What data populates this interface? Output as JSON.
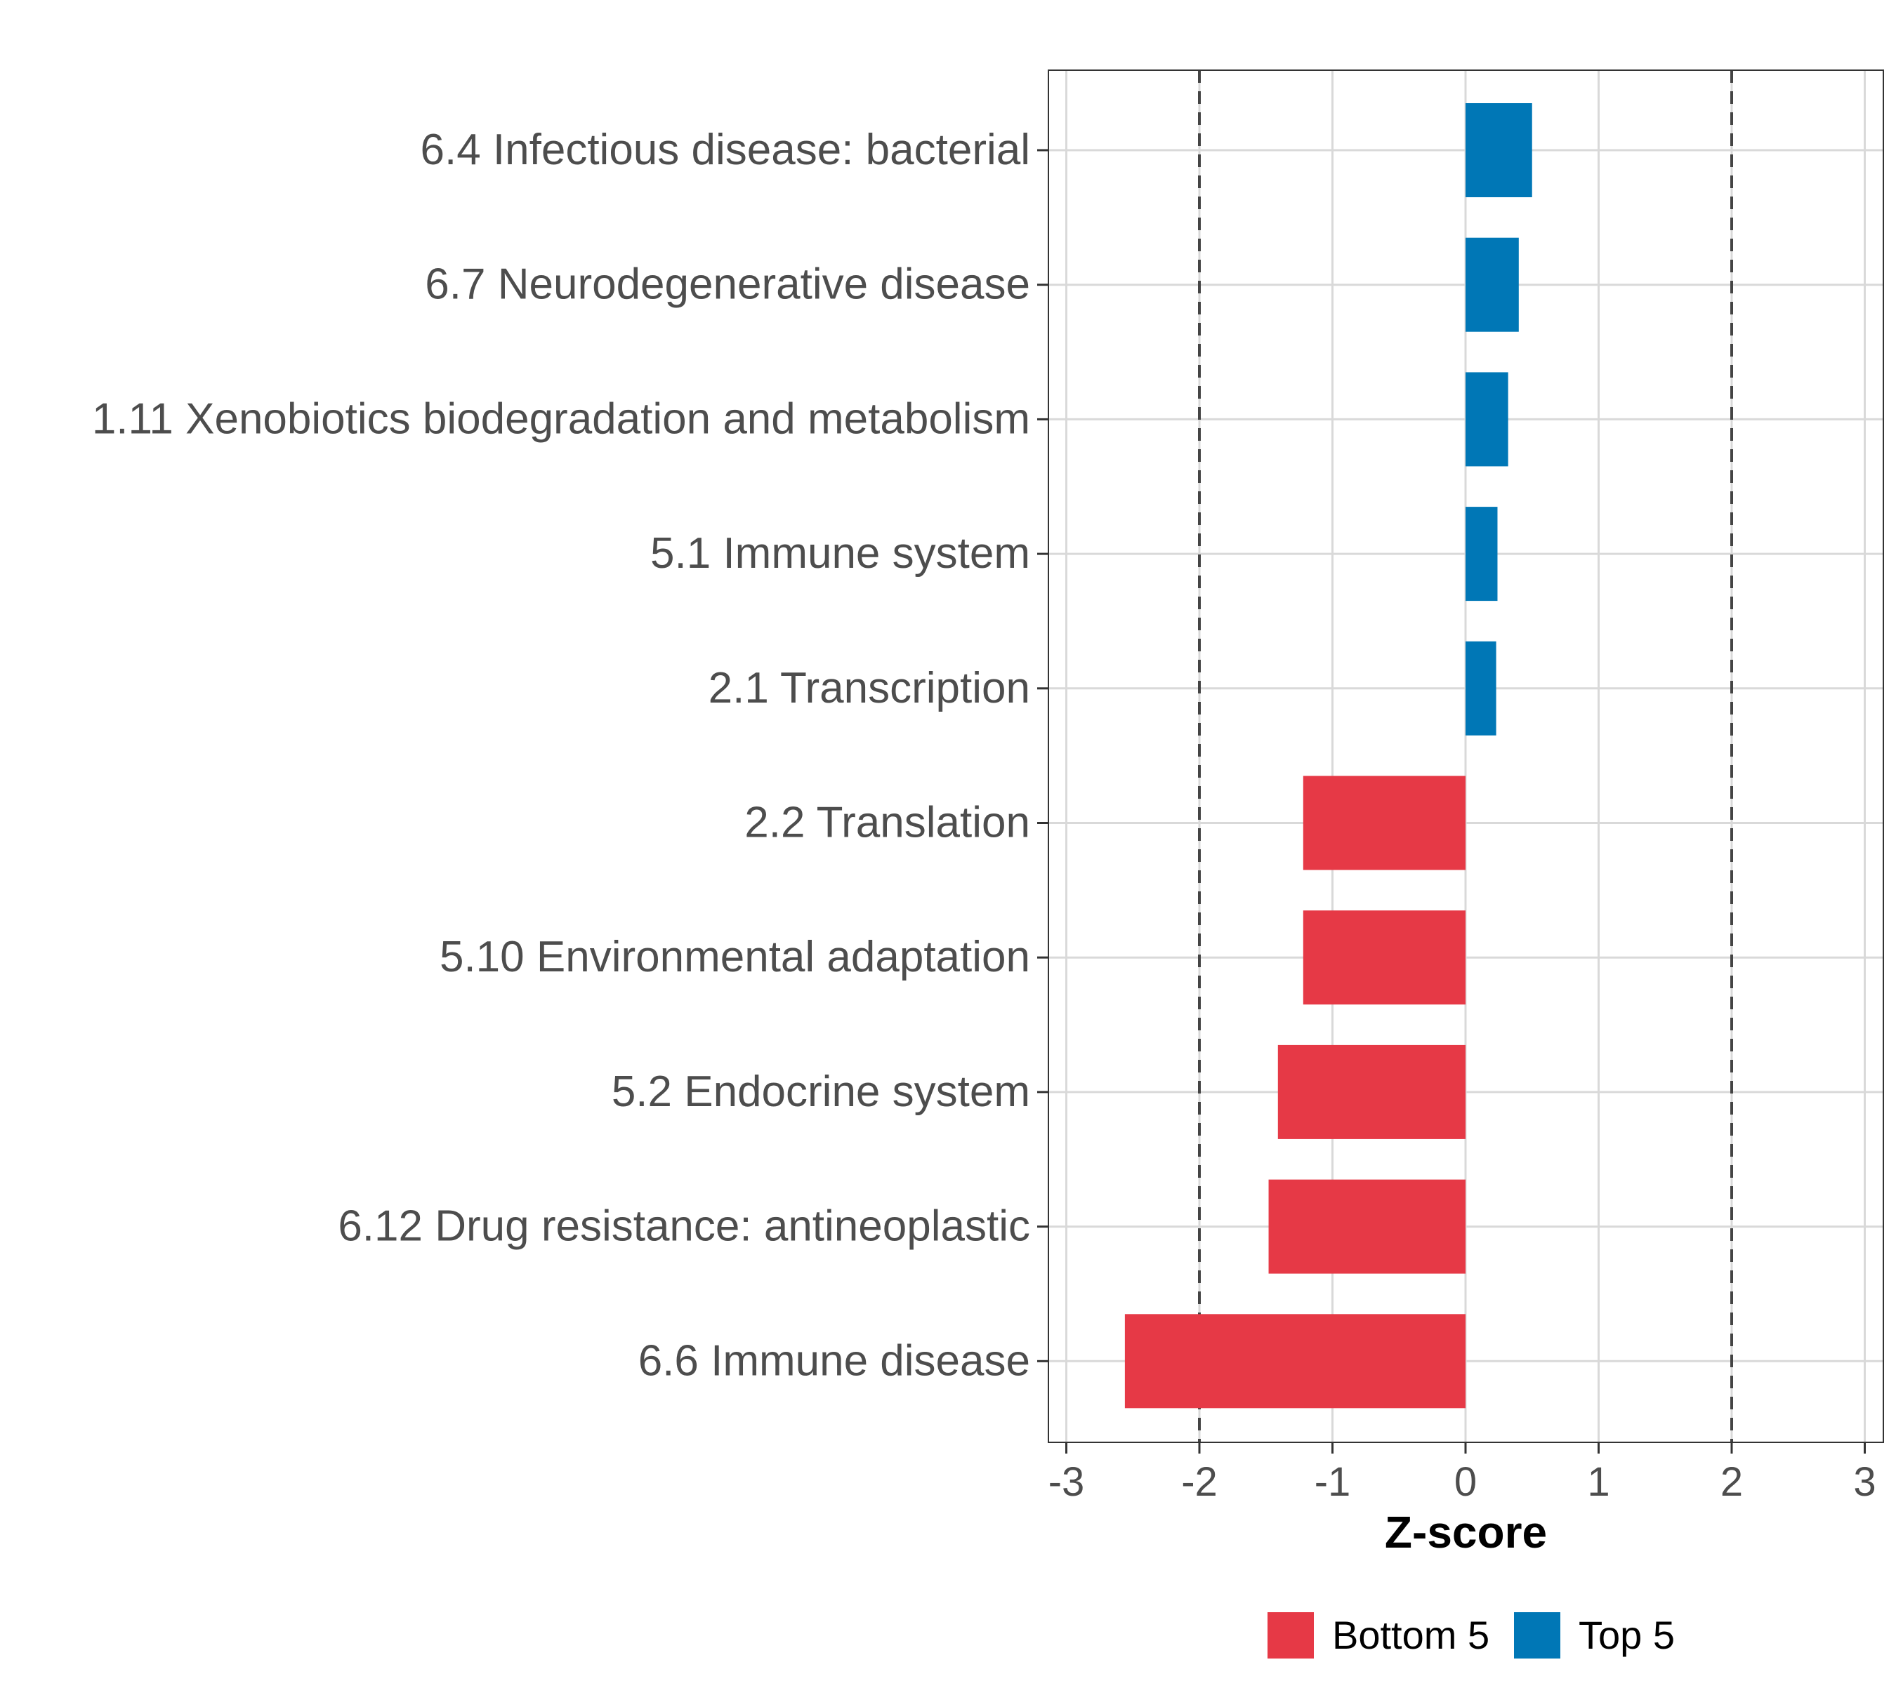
{
  "chart_data": {
    "type": "bar",
    "orientation": "horizontal",
    "xlabel": "Z-score",
    "ylabel": "",
    "xlim": [
      -3,
      3
    ],
    "xticks": [
      -3,
      -2,
      -1,
      0,
      1,
      2,
      3
    ],
    "reference_lines": [
      -2,
      2
    ],
    "grid": true,
    "legend_position": "bottom",
    "categories": [
      "6.4 Infectious disease: bacterial",
      "6.7 Neurodegenerative disease",
      "1.11 Xenobiotics biodegradation and metabolism",
      "5.1 Immune system",
      "2.1 Transcription",
      "2.2 Translation",
      "5.10 Environmental adaptation",
      "5.2 Endocrine system",
      "6.12 Drug resistance: antineoplastic",
      "6.6 Immune disease"
    ],
    "values": [
      0.5,
      0.4,
      0.32,
      0.24,
      0.23,
      -1.22,
      -1.22,
      -1.41,
      -1.48,
      -2.56
    ],
    "groups": [
      "Top 5",
      "Top 5",
      "Top 5",
      "Top 5",
      "Top 5",
      "Bottom 5",
      "Bottom 5",
      "Bottom 5",
      "Bottom 5",
      "Bottom 5"
    ],
    "legend": [
      {
        "name": "Bottom 5",
        "color": "#E63946"
      },
      {
        "name": "Top 5",
        "color": "#0077B6"
      }
    ]
  }
}
